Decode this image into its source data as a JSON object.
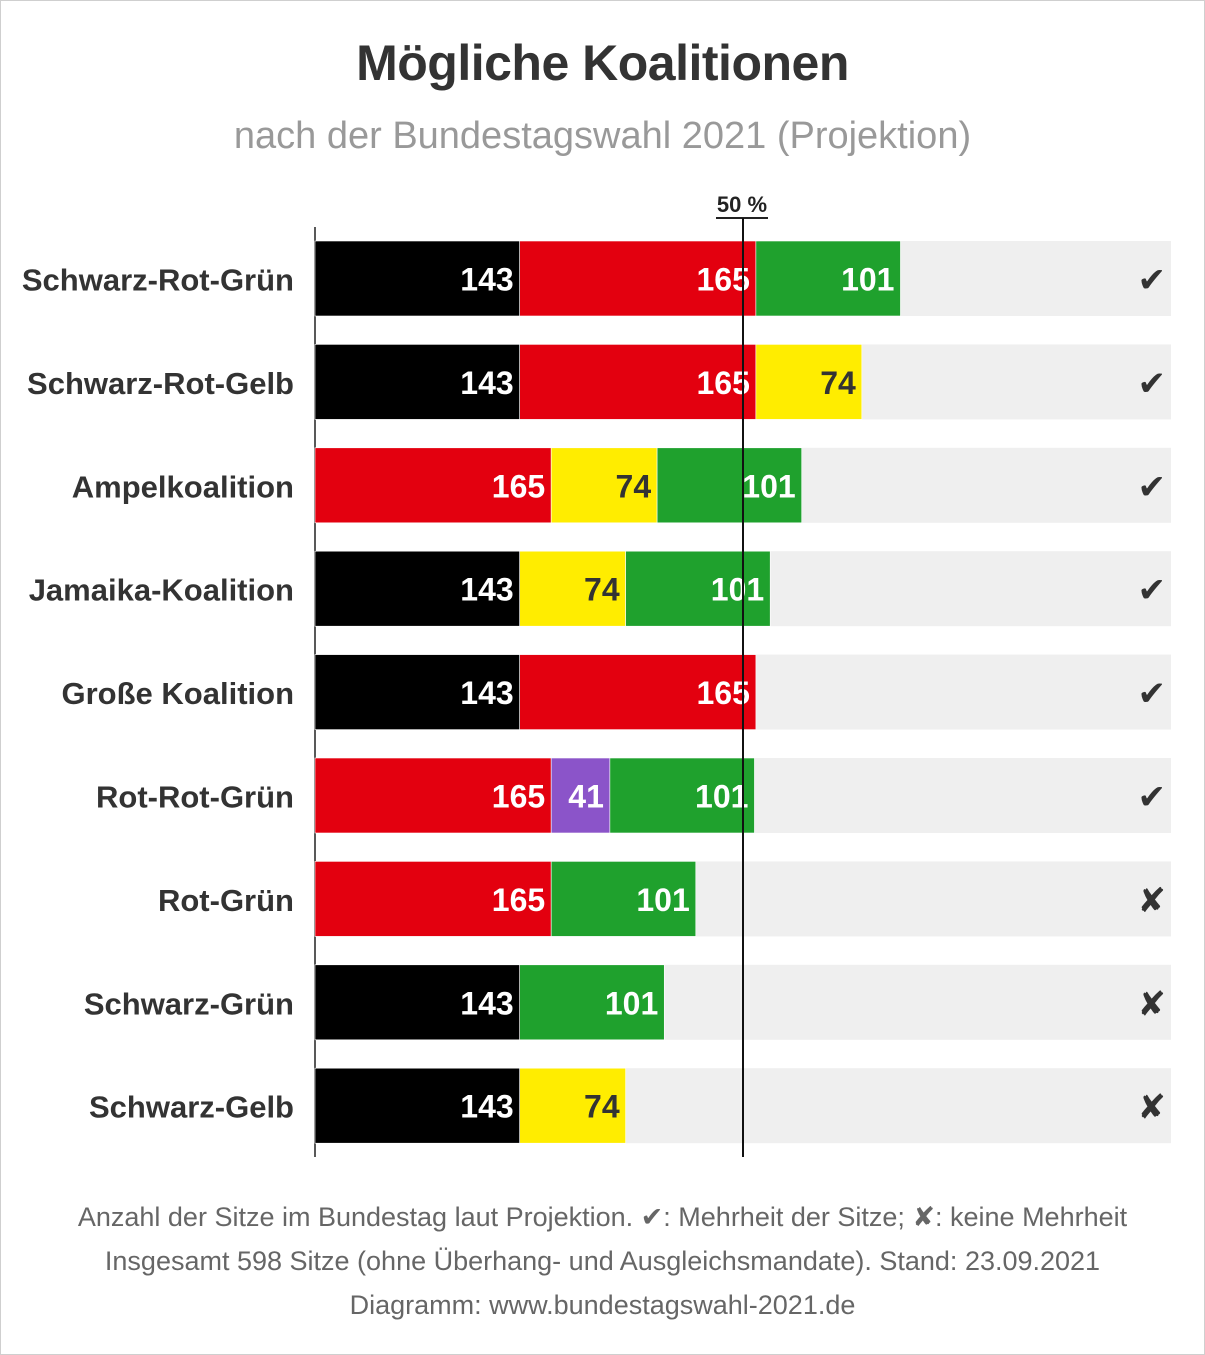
{
  "title": "Mögliche Koalitionen",
  "subtitle": "nach der Bundestagswahl 2021 (Projektion)",
  "marker_label": "50 %",
  "footer": {
    "line1": "Anzahl der Sitze im Bundestag laut Projektion. ✔: Mehrheit der Sitze; ✘: keine Mehrheit",
    "line2": "Insgesamt 598 Sitze (ohne Überhang- und Ausgleichsmandate). Stand: 23.09.2021",
    "line3": "Diagramm: www.bundestagswahl-2021.de"
  },
  "colors": {
    "cdu": "#000000",
    "spd": "#e3000f",
    "gruene": "#1fa12d",
    "fdp": "#ffed00",
    "linke": "#8b54c9",
    "track": "#efefef",
    "text_dark": "#333333"
  },
  "chart_data": {
    "type": "bar",
    "orientation": "horizontal",
    "stacked": true,
    "total_seats": 598,
    "majority_marker_percent": 50,
    "xlim": [
      0,
      598
    ],
    "categories": [
      "Schwarz-Rot-Grün",
      "Schwarz-Rot-Gelb",
      "Ampelkoalition",
      "Jamaika-Koalition",
      "Große Koalition",
      "Rot-Rot-Grün",
      "Rot-Grün",
      "Schwarz-Grün",
      "Schwarz-Gelb"
    ],
    "rows": [
      {
        "label": "Schwarz-Rot-Grün",
        "majority": true,
        "segments": [
          {
            "party": "cdu",
            "value": 143
          },
          {
            "party": "spd",
            "value": 165
          },
          {
            "party": "gruene",
            "value": 101
          }
        ]
      },
      {
        "label": "Schwarz-Rot-Gelb",
        "majority": true,
        "segments": [
          {
            "party": "cdu",
            "value": 143
          },
          {
            "party": "spd",
            "value": 165
          },
          {
            "party": "fdp",
            "value": 74
          }
        ]
      },
      {
        "label": "Ampelkoalition",
        "majority": true,
        "segments": [
          {
            "party": "spd",
            "value": 165
          },
          {
            "party": "fdp",
            "value": 74
          },
          {
            "party": "gruene",
            "value": 101
          }
        ]
      },
      {
        "label": "Jamaika-Koalition",
        "majority": true,
        "segments": [
          {
            "party": "cdu",
            "value": 143
          },
          {
            "party": "fdp",
            "value": 74
          },
          {
            "party": "gruene",
            "value": 101
          }
        ]
      },
      {
        "label": "Große Koalition",
        "majority": true,
        "segments": [
          {
            "party": "cdu",
            "value": 143
          },
          {
            "party": "spd",
            "value": 165
          }
        ]
      },
      {
        "label": "Rot-Rot-Grün",
        "majority": true,
        "segments": [
          {
            "party": "spd",
            "value": 165
          },
          {
            "party": "linke",
            "value": 41
          },
          {
            "party": "gruene",
            "value": 101
          }
        ]
      },
      {
        "label": "Rot-Grün",
        "majority": false,
        "segments": [
          {
            "party": "spd",
            "value": 165
          },
          {
            "party": "gruene",
            "value": 101
          }
        ]
      },
      {
        "label": "Schwarz-Grün",
        "majority": false,
        "segments": [
          {
            "party": "cdu",
            "value": 143
          },
          {
            "party": "gruene",
            "value": 101
          }
        ]
      },
      {
        "label": "Schwarz-Gelb",
        "majority": false,
        "segments": [
          {
            "party": "cdu",
            "value": 143
          },
          {
            "party": "fdp",
            "value": 74
          }
        ]
      }
    ],
    "symbols": {
      "majority": "✔",
      "no_majority": "✘"
    }
  }
}
